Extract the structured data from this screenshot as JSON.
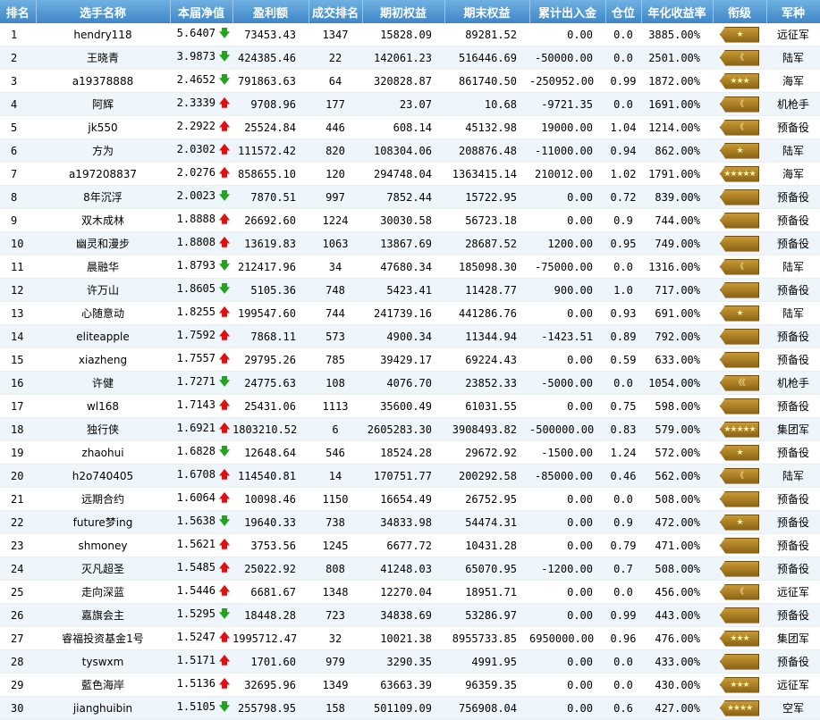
{
  "columns": [
    "排名",
    "选手名称",
    "本届净值",
    "盈利额",
    "成交排名",
    "期初权益",
    "期末权益",
    "累计出入金",
    "仓位",
    "年化收益率",
    "衔级",
    "军种"
  ],
  "colors": {
    "header": "#4a90d0",
    "up": "#e01010",
    "down": "#22a51c",
    "badge": "#b0832a"
  },
  "rows": [
    {
      "rank": "1",
      "name": "hendry118",
      "nav": "5.6407",
      "dir": "down",
      "profit": "73453.43",
      "trade_rank": "1347",
      "begin": "15828.09",
      "end": "89281.52",
      "flow": "0.00",
      "pos": "0.0",
      "annual": "3885.00%",
      "badge": "★",
      "branch": "远征军"
    },
    {
      "rank": "2",
      "name": "王晓青",
      "nav": "3.9873",
      "dir": "down",
      "profit": "424385.46",
      "trade_rank": "22",
      "begin": "142061.23",
      "end": "516446.69",
      "flow": "-50000.00",
      "pos": "0.0",
      "annual": "2501.00%",
      "badge": "《",
      "branch": "陆军"
    },
    {
      "rank": "3",
      "name": "a19378888",
      "nav": "2.4652",
      "dir": "down",
      "profit": "791863.63",
      "trade_rank": "64",
      "begin": "320828.87",
      "end": "861740.50",
      "flow": "-250952.00",
      "pos": "0.99",
      "annual": "1872.00%",
      "badge": "★★★",
      "branch": "海军"
    },
    {
      "rank": "4",
      "name": "阿辉",
      "nav": "2.3339",
      "dir": "up",
      "profit": "9708.96",
      "trade_rank": "177",
      "begin": "23.07",
      "end": "10.68",
      "flow": "-9721.35",
      "pos": "0.0",
      "annual": "1691.00%",
      "badge": "《",
      "branch": "机枪手"
    },
    {
      "rank": "5",
      "name": "jk550",
      "nav": "2.2922",
      "dir": "up",
      "profit": "25524.84",
      "trade_rank": "446",
      "begin": "608.14",
      "end": "45132.98",
      "flow": "19000.00",
      "pos": "1.04",
      "annual": "1214.00%",
      "badge": "《",
      "branch": "预备役"
    },
    {
      "rank": "6",
      "name": "方为",
      "nav": "2.0302",
      "dir": "up",
      "profit": "111572.42",
      "trade_rank": "820",
      "begin": "108304.06",
      "end": "208876.48",
      "flow": "-11000.00",
      "pos": "0.94",
      "annual": "862.00%",
      "badge": "★",
      "branch": "陆军"
    },
    {
      "rank": "7",
      "name": "a197208837",
      "nav": "2.0276",
      "dir": "up",
      "profit": "858655.10",
      "trade_rank": "120",
      "begin": "294748.04",
      "end": "1363415.14",
      "flow": "210012.00",
      "pos": "1.02",
      "annual": "1791.00%",
      "badge": "★★★★★",
      "branch": "海军"
    },
    {
      "rank": "8",
      "name": "8年沉浮",
      "nav": "2.0023",
      "dir": "down",
      "profit": "7870.51",
      "trade_rank": "997",
      "begin": "7852.44",
      "end": "15722.95",
      "flow": "0.00",
      "pos": "0.72",
      "annual": "839.00%",
      "badge": "",
      "branch": "预备役"
    },
    {
      "rank": "9",
      "name": "双木成林",
      "nav": "1.8888",
      "dir": "up",
      "profit": "26692.60",
      "trade_rank": "1224",
      "begin": "30030.58",
      "end": "56723.18",
      "flow": "0.00",
      "pos": "0.9",
      "annual": "744.00%",
      "badge": "",
      "branch": "预备役"
    },
    {
      "rank": "10",
      "name": "幽灵和漫步",
      "nav": "1.8808",
      "dir": "up",
      "profit": "13619.83",
      "trade_rank": "1063",
      "begin": "13867.69",
      "end": "28687.52",
      "flow": "1200.00",
      "pos": "0.95",
      "annual": "749.00%",
      "badge": "",
      "branch": "预备役"
    },
    {
      "rank": "11",
      "name": "晨融华",
      "nav": "1.8793",
      "dir": "down",
      "profit": "212417.96",
      "trade_rank": "34",
      "begin": "47680.34",
      "end": "185098.30",
      "flow": "-75000.00",
      "pos": "0.0",
      "annual": "1316.00%",
      "badge": "《",
      "branch": "陆军"
    },
    {
      "rank": "12",
      "name": "许万山",
      "nav": "1.8605",
      "dir": "down",
      "profit": "5105.36",
      "trade_rank": "748",
      "begin": "5423.41",
      "end": "11428.77",
      "flow": "900.00",
      "pos": "1.0",
      "annual": "717.00%",
      "badge": "",
      "branch": "预备役"
    },
    {
      "rank": "13",
      "name": "心随意动",
      "nav": "1.8255",
      "dir": "up",
      "profit": "199547.60",
      "trade_rank": "744",
      "begin": "241739.16",
      "end": "441286.76",
      "flow": "0.00",
      "pos": "0.93",
      "annual": "691.00%",
      "badge": "★",
      "branch": "陆军"
    },
    {
      "rank": "14",
      "name": "eliteapple",
      "nav": "1.7592",
      "dir": "up",
      "profit": "7868.11",
      "trade_rank": "573",
      "begin": "4900.34",
      "end": "11344.94",
      "flow": "-1423.51",
      "pos": "0.89",
      "annual": "792.00%",
      "badge": "",
      "branch": "预备役"
    },
    {
      "rank": "15",
      "name": "xiazheng",
      "nav": "1.7557",
      "dir": "up",
      "profit": "29795.26",
      "trade_rank": "785",
      "begin": "39429.17",
      "end": "69224.43",
      "flow": "0.00",
      "pos": "0.59",
      "annual": "633.00%",
      "badge": "",
      "branch": "预备役"
    },
    {
      "rank": "16",
      "name": "许健",
      "nav": "1.7271",
      "dir": "down",
      "profit": "24775.63",
      "trade_rank": "108",
      "begin": "4076.70",
      "end": "23852.33",
      "flow": "-5000.00",
      "pos": "0.0",
      "annual": "1054.00%",
      "badge": "《《",
      "branch": "机枪手"
    },
    {
      "rank": "17",
      "name": "wl168",
      "nav": "1.7143",
      "dir": "up",
      "profit": "25431.06",
      "trade_rank": "1113",
      "begin": "35600.49",
      "end": "61031.55",
      "flow": "0.00",
      "pos": "0.75",
      "annual": "598.00%",
      "badge": "",
      "branch": "预备役"
    },
    {
      "rank": "18",
      "name": "独行侠",
      "nav": "1.6921",
      "dir": "up",
      "profit": "1803210.52",
      "trade_rank": "6",
      "begin": "2605283.30",
      "end": "3908493.82",
      "flow": "-500000.00",
      "pos": "0.83",
      "annual": "579.00%",
      "badge": "★★★★★",
      "branch": "集团军"
    },
    {
      "rank": "19",
      "name": "zhaohui",
      "nav": "1.6828",
      "dir": "down",
      "profit": "12648.64",
      "trade_rank": "546",
      "begin": "18524.28",
      "end": "29672.92",
      "flow": "-1500.00",
      "pos": "1.24",
      "annual": "572.00%",
      "badge": "★",
      "branch": "预备役"
    },
    {
      "rank": "20",
      "name": "h2o740405",
      "nav": "1.6708",
      "dir": "up",
      "profit": "114540.81",
      "trade_rank": "14",
      "begin": "170751.77",
      "end": "200292.58",
      "flow": "-85000.00",
      "pos": "0.46",
      "annual": "562.00%",
      "badge": "《",
      "branch": "陆军"
    },
    {
      "rank": "21",
      "name": "远期合约",
      "nav": "1.6064",
      "dir": "up",
      "profit": "10098.46",
      "trade_rank": "1150",
      "begin": "16654.49",
      "end": "26752.95",
      "flow": "0.00",
      "pos": "0.0",
      "annual": "508.00%",
      "badge": "",
      "branch": "预备役"
    },
    {
      "rank": "22",
      "name": "future梦ing",
      "nav": "1.5638",
      "dir": "down",
      "profit": "19640.33",
      "trade_rank": "738",
      "begin": "34833.98",
      "end": "54474.31",
      "flow": "0.00",
      "pos": "0.9",
      "annual": "472.00%",
      "badge": "★",
      "branch": "预备役"
    },
    {
      "rank": "23",
      "name": "shmoney",
      "nav": "1.5621",
      "dir": "up",
      "profit": "3753.56",
      "trade_rank": "1245",
      "begin": "6677.72",
      "end": "10431.28",
      "flow": "0.00",
      "pos": "0.79",
      "annual": "471.00%",
      "badge": "",
      "branch": "预备役"
    },
    {
      "rank": "24",
      "name": "灭凡超圣",
      "nav": "1.5485",
      "dir": "up",
      "profit": "25022.92",
      "trade_rank": "808",
      "begin": "41248.03",
      "end": "65070.95",
      "flow": "-1200.00",
      "pos": "0.7",
      "annual": "508.00%",
      "badge": "",
      "branch": "预备役"
    },
    {
      "rank": "25",
      "name": "走向深蓝",
      "nav": "1.5446",
      "dir": "up",
      "profit": "6681.67",
      "trade_rank": "1348",
      "begin": "12270.04",
      "end": "18951.71",
      "flow": "0.00",
      "pos": "0.0",
      "annual": "456.00%",
      "badge": "《",
      "branch": "远征军"
    },
    {
      "rank": "26",
      "name": "嘉旗会主",
      "nav": "1.5295",
      "dir": "down",
      "profit": "18448.28",
      "trade_rank": "723",
      "begin": "34838.69",
      "end": "53286.97",
      "flow": "0.00",
      "pos": "0.99",
      "annual": "443.00%",
      "badge": "",
      "branch": "预备役"
    },
    {
      "rank": "27",
      "name": "睿福投资基金1号",
      "nav": "1.5247",
      "dir": "up",
      "profit": "1995712.47",
      "trade_rank": "32",
      "begin": "10021.38",
      "end": "8955733.85",
      "flow": "6950000.00",
      "pos": "0.96",
      "annual": "476.00%",
      "badge": "★★★",
      "branch": "集团军"
    },
    {
      "rank": "28",
      "name": "tyswxm",
      "nav": "1.5171",
      "dir": "up",
      "profit": "1701.60",
      "trade_rank": "979",
      "begin": "3290.35",
      "end": "4991.95",
      "flow": "0.00",
      "pos": "0.0",
      "annual": "433.00%",
      "badge": "",
      "branch": "预备役"
    },
    {
      "rank": "29",
      "name": "藍色海岸",
      "nav": "1.5136",
      "dir": "up",
      "profit": "32695.96",
      "trade_rank": "1349",
      "begin": "63663.39",
      "end": "96359.35",
      "flow": "0.00",
      "pos": "0.0",
      "annual": "430.00%",
      "badge": "★★★",
      "branch": "远征军"
    },
    {
      "rank": "30",
      "name": "jianghuibin",
      "nav": "1.5105",
      "dir": "down",
      "profit": "255798.95",
      "trade_rank": "158",
      "begin": "501109.09",
      "end": "756908.04",
      "flow": "0.00",
      "pos": "0.6",
      "annual": "427.00%",
      "badge": "★★★★",
      "branch": "空军"
    }
  ]
}
